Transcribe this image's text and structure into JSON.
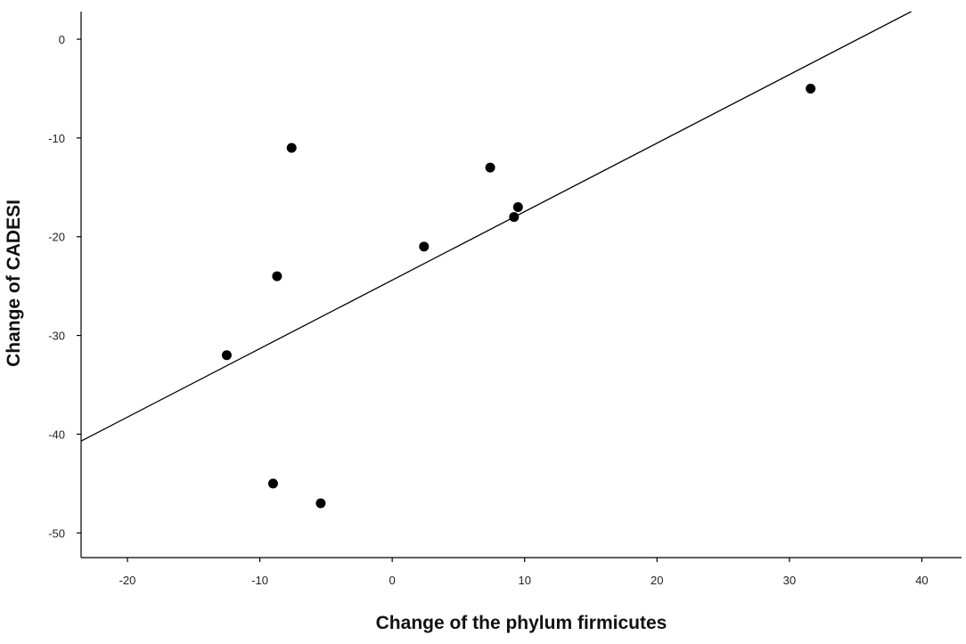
{
  "chart_data": {
    "type": "scatter",
    "title": "",
    "xlabel": "Change of the phylum firmicutes",
    "ylabel": "Change of CADESI",
    "xlim": [
      -23.5,
      43
    ],
    "ylim": [
      -52.5,
      2.8
    ],
    "x_ticks": [
      -20,
      -10,
      0,
      10,
      20,
      30,
      40
    ],
    "y_ticks": [
      0,
      -10,
      -20,
      -30,
      -40,
      -50
    ],
    "grid": false,
    "legend": "none",
    "points": [
      {
        "x": -12.5,
        "y": -32
      },
      {
        "x": -8.7,
        "y": -24
      },
      {
        "x": -7.6,
        "y": -11
      },
      {
        "x": -9.0,
        "y": -45
      },
      {
        "x": -5.4,
        "y": -47
      },
      {
        "x": 2.4,
        "y": -21
      },
      {
        "x": 7.4,
        "y": -13
      },
      {
        "x": 9.2,
        "y": -18
      },
      {
        "x": 9.5,
        "y": -17
      },
      {
        "x": 31.6,
        "y": -5
      }
    ],
    "fit_line": {
      "x": [
        -23.5,
        39.2
      ],
      "y": [
        -40.7,
        2.8
      ]
    },
    "colors": {
      "points": "#000000",
      "line": "#000000",
      "axes": "#000000"
    }
  }
}
